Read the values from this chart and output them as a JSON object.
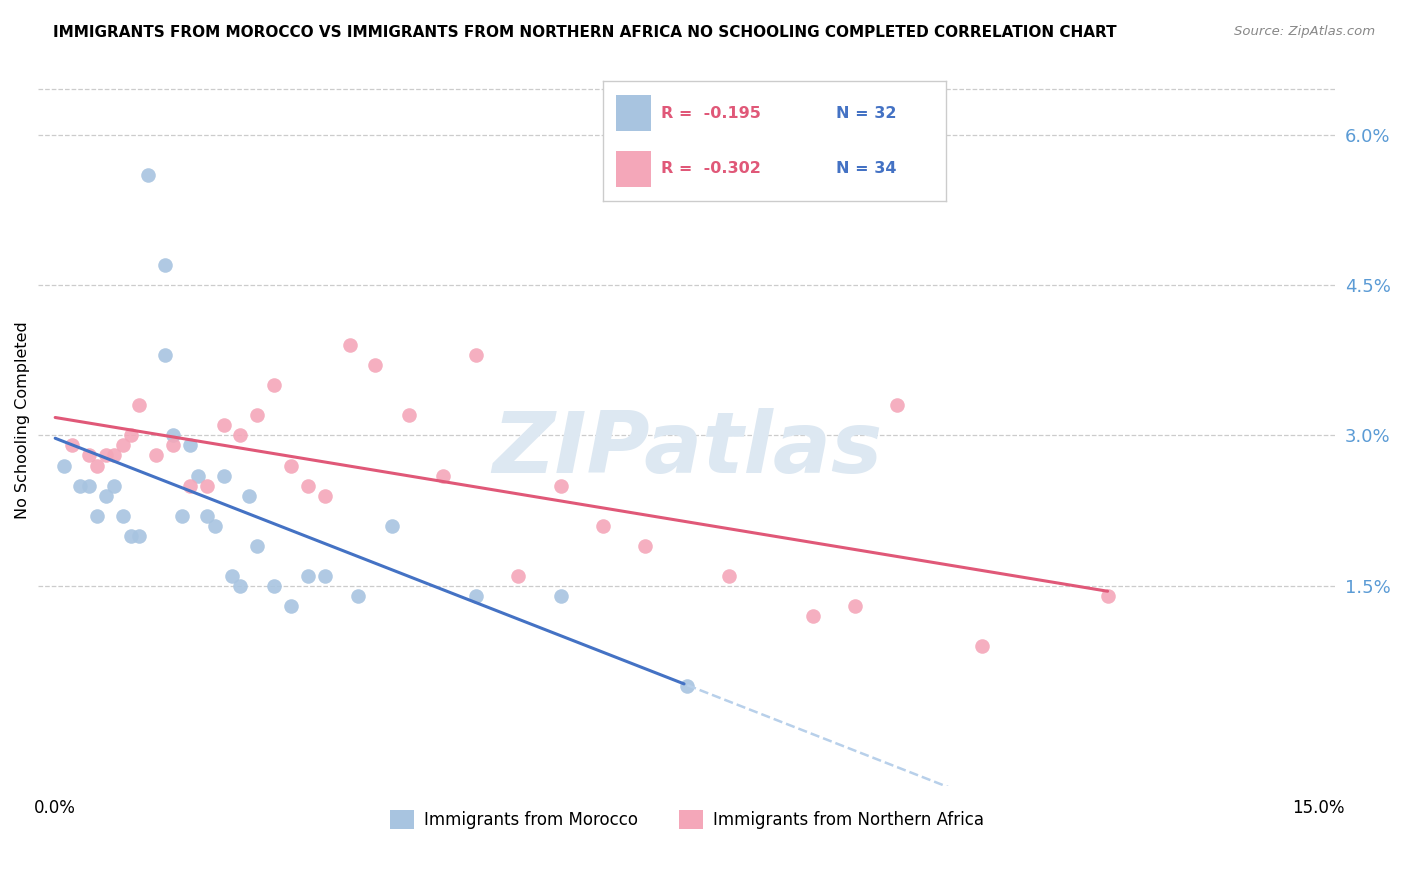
{
  "title": "IMMIGRANTS FROM MOROCCO VS IMMIGRANTS FROM NORTHERN AFRICA NO SCHOOLING COMPLETED CORRELATION CHART",
  "source": "Source: ZipAtlas.com",
  "ylabel": "No Schooling Completed",
  "right_yticks": [
    "6.0%",
    "4.5%",
    "3.0%",
    "1.5%"
  ],
  "right_ytick_vals": [
    0.06,
    0.045,
    0.03,
    0.015
  ],
  "xlim": [
    -0.002,
    0.152
  ],
  "ylim": [
    -0.005,
    0.068
  ],
  "color_blue": "#a8c4e0",
  "color_pink": "#f4a7b9",
  "line_blue": "#4472c4",
  "line_pink": "#e05878",
  "line_blue_dash": "#b8d0ea",
  "watermark": "ZIPatlas",
  "legend_R1": "R =  -0.195",
  "legend_N1": "N = 32",
  "legend_R2": "R =  -0.302",
  "legend_N2": "N = 34",
  "morocco_x": [
    0.001,
    0.003,
    0.004,
    0.005,
    0.006,
    0.007,
    0.008,
    0.009,
    0.01,
    0.011,
    0.013,
    0.013,
    0.014,
    0.015,
    0.016,
    0.017,
    0.018,
    0.019,
    0.02,
    0.021,
    0.022,
    0.023,
    0.024,
    0.026,
    0.028,
    0.03,
    0.032,
    0.036,
    0.04,
    0.05,
    0.06,
    0.075
  ],
  "morocco_y": [
    0.027,
    0.025,
    0.025,
    0.022,
    0.024,
    0.025,
    0.022,
    0.02,
    0.02,
    0.056,
    0.047,
    0.038,
    0.03,
    0.022,
    0.029,
    0.026,
    0.022,
    0.021,
    0.026,
    0.016,
    0.015,
    0.024,
    0.019,
    0.015,
    0.013,
    0.016,
    0.016,
    0.014,
    0.021,
    0.014,
    0.014,
    0.005
  ],
  "northern_x": [
    0.002,
    0.004,
    0.005,
    0.006,
    0.007,
    0.008,
    0.009,
    0.01,
    0.012,
    0.014,
    0.016,
    0.018,
    0.02,
    0.022,
    0.024,
    0.026,
    0.028,
    0.03,
    0.032,
    0.035,
    0.038,
    0.042,
    0.046,
    0.05,
    0.055,
    0.06,
    0.065,
    0.07,
    0.08,
    0.09,
    0.095,
    0.1,
    0.11,
    0.125
  ],
  "northern_y": [
    0.029,
    0.028,
    0.027,
    0.028,
    0.028,
    0.029,
    0.03,
    0.033,
    0.028,
    0.029,
    0.025,
    0.025,
    0.031,
    0.03,
    0.032,
    0.035,
    0.027,
    0.025,
    0.024,
    0.039,
    0.037,
    0.032,
    0.026,
    0.038,
    0.016,
    0.025,
    0.021,
    0.019,
    0.016,
    0.012,
    0.013,
    0.033,
    0.009,
    0.014
  ]
}
